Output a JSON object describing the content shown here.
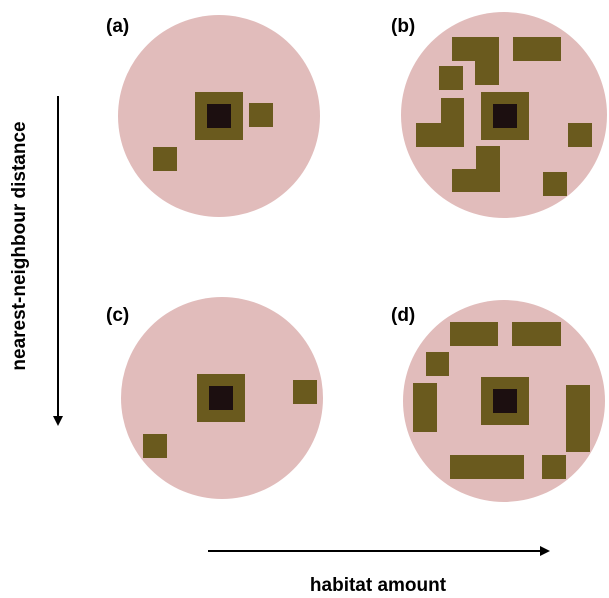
{
  "panels": [
    {
      "label": "(a)",
      "patches": [
        [
          249,
          103,
          24,
          24
        ],
        [
          153,
          147,
          24,
          24
        ]
      ]
    },
    {
      "label": "(b)",
      "patches": [
        [
          452,
          37,
          47,
          24
        ],
        [
          475,
          37,
          24,
          48
        ],
        [
          513,
          37,
          48,
          24
        ],
        [
          439,
          66,
          24,
          24
        ],
        [
          441,
          98,
          23,
          49
        ],
        [
          416,
          123,
          48,
          24
        ],
        [
          568,
          123,
          24,
          24
        ],
        [
          476,
          146,
          24,
          46
        ],
        [
          452,
          169,
          48,
          23
        ],
        [
          543,
          172,
          24,
          24
        ]
      ]
    },
    {
      "label": "(c)",
      "patches": [
        [
          293,
          380,
          24,
          24
        ],
        [
          143,
          434,
          24,
          24
        ]
      ]
    },
    {
      "label": "(d)",
      "patches": [
        [
          450,
          322,
          48,
          24
        ],
        [
          512,
          322,
          49,
          24
        ],
        [
          426,
          352,
          23,
          24
        ],
        [
          413,
          383,
          24,
          49
        ],
        [
          566,
          385,
          24,
          67
        ],
        [
          450,
          455,
          74,
          24
        ],
        [
          542,
          455,
          24,
          24
        ]
      ]
    }
  ],
  "axes": {
    "y_label": "nearest-neighbour distance",
    "x_label": "habitat amount"
  },
  "colors": {
    "landscape": "#e1bcbb",
    "patch": "#6a5a1e",
    "focal_patch": "#6a5a1e",
    "focal_core": "#1c0f10",
    "arrow": "#000000"
  }
}
